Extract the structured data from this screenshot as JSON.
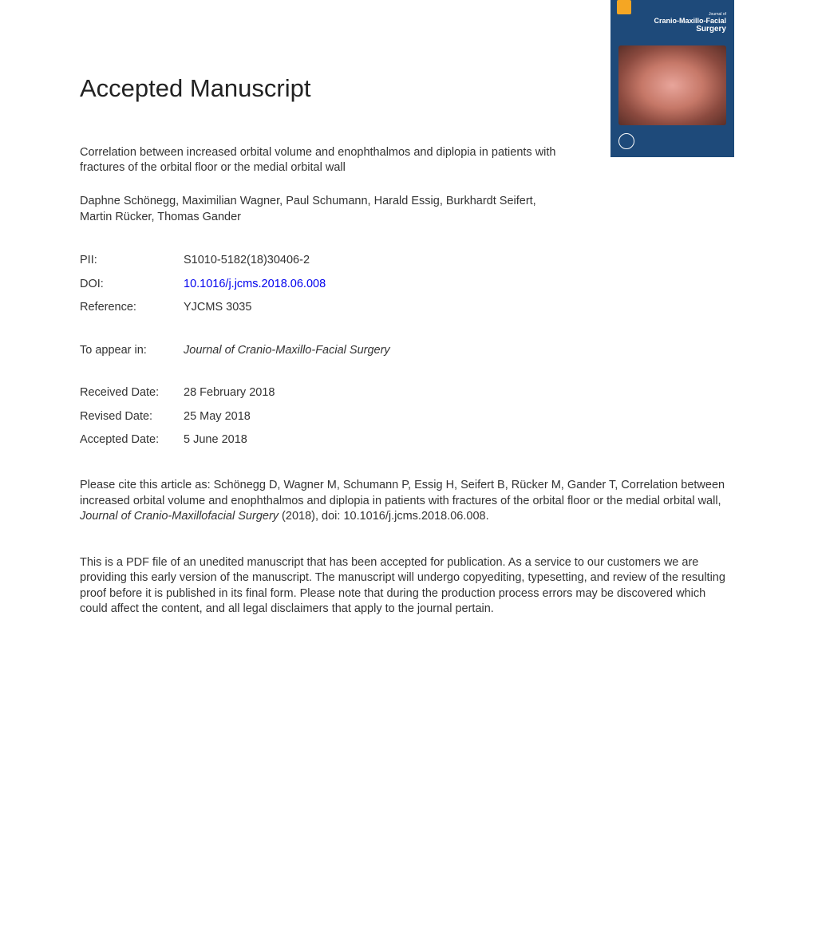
{
  "page_title": "Accepted Manuscript",
  "cover": {
    "journal_prefix": "Journal of",
    "journal_main": "Cranio-Maxillo-Facial",
    "journal_surgery": "Surgery"
  },
  "article_title": "Correlation between increased orbital volume and enophthalmos and diplopia in patients with fractures of the orbital floor or the medial orbital wall",
  "authors": "Daphne Schönegg, Maximilian Wagner, Paul Schumann, Harald Essig, Burkhardt Seifert, Martin Rücker, Thomas Gander",
  "meta": {
    "pii_label": "PII:",
    "pii_value": "S1010-5182(18)30406-2",
    "doi_label": "DOI:",
    "doi_value": "10.1016/j.jcms.2018.06.008",
    "reference_label": "Reference:",
    "reference_value": "YJCMS 3035",
    "to_appear_label": "To appear in:",
    "to_appear_value": "Journal of Cranio-Maxillo-Facial Surgery",
    "received_label": "Received Date:",
    "received_value": "28 February 2018",
    "revised_label": "Revised Date:",
    "revised_value": "25 May 2018",
    "accepted_label": "Accepted Date:",
    "accepted_value": "5 June 2018"
  },
  "citation_prefix": "Please cite this article as: Schönegg D, Wagner M, Schumann P, Essig H, Seifert B, Rücker M, Gander T, Correlation between increased orbital volume and enophthalmos and diplopia in patients with fractures of the orbital floor or the medial orbital wall, ",
  "citation_journal": "Journal of Cranio-Maxillofacial Surgery",
  "citation_suffix": " (2018), doi: 10.1016/j.jcms.2018.06.008.",
  "disclaimer": "This is a PDF file of an unedited manuscript that has been accepted for publication. As a service to our customers we are providing this early version of the manuscript. The manuscript will undergo copyediting, typesetting, and review of the resulting proof before it is published in its final form. Please note that during the production process errors may be discovered which could affect the content, and all legal disclaimers that apply to the journal pertain."
}
